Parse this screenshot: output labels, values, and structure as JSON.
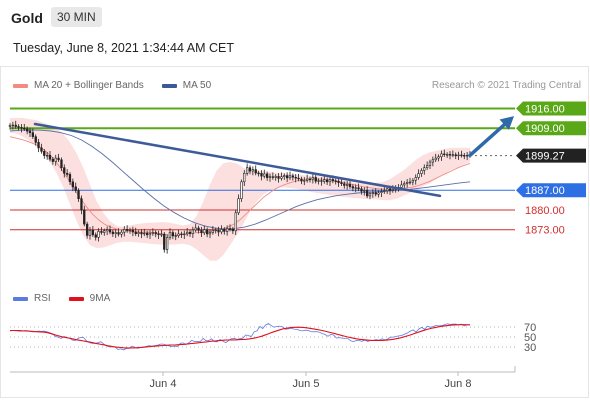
{
  "header": {
    "instrument": "Gold",
    "timeframe": "30 MIN"
  },
  "datetime": "Tuesday, June 8, 2021 1:34:44 AM CET",
  "legend": {
    "ma20": {
      "label": "MA 20 + Bollinger Bands",
      "color": "#f28b82"
    },
    "ma50": {
      "label": "MA 50",
      "color": "#3b5998"
    }
  },
  "credit": "Research © 2021 Trading Central",
  "rsi_legend": {
    "rsi": {
      "label": "RSI",
      "color": "#5b7be0"
    },
    "ma9": {
      "label": "9MA",
      "color": "#e0101c"
    }
  },
  "chart_data": [
    {
      "type": "candlestick",
      "ylim": [
        1858,
        1919
      ],
      "categories": [
        "Jun 4",
        "Jun 5",
        "Jun 8"
      ],
      "current_price": 1899.27,
      "levels": [
        {
          "value": 1916.0,
          "label": "1916.00",
          "color": "#5aa817",
          "kind": "resistance"
        },
        {
          "value": 1909.0,
          "label": "1909.00",
          "color": "#5aa817",
          "kind": "resistance"
        },
        {
          "value": 1899.27,
          "label": "1899.27",
          "color": "#222222",
          "kind": "price"
        },
        {
          "value": 1887.0,
          "label": "1887.00",
          "color": "#2f6fe4",
          "kind": "pivot"
        },
        {
          "value": 1880.0,
          "label": "1880.00",
          "color": "#d22f2f",
          "kind": "support"
        },
        {
          "value": 1873.0,
          "label": "1873.00",
          "color": "#d22f2f",
          "kind": "support"
        }
      ],
      "close_series": [
        1910.0,
        1910.1,
        1909.6,
        1909.3,
        1909.0,
        1908.8,
        1908.0,
        1907.4,
        1906.0,
        1904.0,
        1902.0,
        1900.8,
        1899.3,
        1899.4,
        1898.0,
        1897.2,
        1898.4,
        1897.8,
        1895.0,
        1893.0,
        1892.6,
        1890.0,
        1888.2,
        1886.9,
        1884.0,
        1880.0,
        1875.0,
        1871.0,
        1872.8,
        1871.2,
        1870.3,
        1872.4,
        1872.0,
        1872.6,
        1873.0,
        1872.2,
        1871.6,
        1872.0,
        1871.4,
        1872.1,
        1873.1,
        1872.7,
        1872.9,
        1872.2,
        1871.6,
        1872.0,
        1871.5,
        1871.8,
        1871.2,
        1871.6,
        1872.0,
        1871.5,
        1871.2,
        1871.4,
        1866.0,
        1870.2,
        1872.0,
        1870.8,
        1870.9,
        1871.5,
        1871.2,
        1871.5,
        1872.1,
        1871.6,
        1872.9,
        1873.6,
        1872.8,
        1871.9,
        1873.0,
        1871.5,
        1872.0,
        1872.8,
        1872.9,
        1872.2,
        1873.1,
        1872.4,
        1873.4,
        1873.2,
        1872.6,
        1879.0,
        1884.0,
        1890.0,
        1893.0,
        1895.0,
        1893.8,
        1894.3,
        1893.1,
        1893.0,
        1892.0,
        1892.8,
        1891.5,
        1891.8,
        1891.5,
        1891.9,
        1891.2,
        1891.8,
        1892.2,
        1891.4,
        1892.1,
        1891.6,
        1891.3,
        1891.0,
        1890.3,
        1890.5,
        1891.0,
        1890.9,
        1891.5,
        1890.2,
        1890.4,
        1890.1,
        1890.7,
        1890.0,
        1890.8,
        1890.3,
        1890.2,
        1889.7,
        1889.3,
        1888.7,
        1889.1,
        1888.3,
        1887.8,
        1887.9,
        1887.5,
        1886.6,
        1886.9,
        1885.0,
        1885.8,
        1886.2,
        1885.6,
        1886.1,
        1886.5,
        1886.8,
        1887.5,
        1886.9,
        1887.3,
        1888.0,
        1888.0,
        1888.9,
        1889.4,
        1889.8,
        1889.9,
        1890.5,
        1891.5,
        1892.9,
        1894.0,
        1895.0,
        1895.7,
        1897.0,
        1897.8,
        1898.4,
        1898.9,
        1899.9,
        1899.6,
        1899.7,
        1899.5,
        1899.6,
        1899.2,
        1899.5,
        1899.4,
        1899.2,
        1899.4,
        1899.27
      ],
      "ma20": [
        1906.0,
        1905.5,
        1905.0,
        1904.3,
        1903.5,
        1902.5,
        1901.0,
        1899.0,
        1896.5,
        1893.5,
        1890.5,
        1887.0,
        1884.0,
        1881.0,
        1878.5,
        1876.5,
        1875.0,
        1874.0,
        1873.3,
        1872.8,
        1872.5,
        1872.3,
        1872.2,
        1872.1,
        1872.0,
        1871.8,
        1871.5,
        1871.0,
        1871.0,
        1871.2,
        1871.5,
        1871.8,
        1872.0,
        1872.2,
        1872.4,
        1872.8,
        1873.3,
        1874.0,
        1875.0,
        1876.5,
        1878.5,
        1880.5,
        1882.5,
        1884.5,
        1886.0,
        1887.5,
        1888.5,
        1889.3,
        1890.0,
        1890.5,
        1890.8,
        1891.0,
        1891.0,
        1890.9,
        1890.7,
        1890.4,
        1890.0,
        1889.6,
        1889.1,
        1888.6,
        1888.2,
        1887.9,
        1887.6,
        1887.4,
        1887.3,
        1887.3,
        1887.4,
        1887.7,
        1888.0,
        1888.5,
        1889.2,
        1890.0,
        1891.0,
        1892.0,
        1893.0,
        1894.0,
        1895.0,
        1895.8,
        1896.5
      ],
      "bb_upper": [
        1912.5,
        1912.7,
        1912.6,
        1912.2,
        1911.8,
        1911.0,
        1910.0,
        1909.0,
        1907.0,
        1904.0,
        1900.0,
        1895.0,
        1889.0,
        1883.0,
        1879.0,
        1876.0,
        1874.3,
        1874.0,
        1874.5,
        1875.0,
        1875.3,
        1875.5,
        1875.6,
        1875.7,
        1875.5,
        1875.0,
        1874.5,
        1875.0,
        1878.0,
        1883.0,
        1889.0,
        1894.0,
        1896.5,
        1897.0,
        1896.5,
        1895.0,
        1894.3,
        1894.0,
        1893.8,
        1893.5,
        1893.2,
        1893.0,
        1892.7,
        1892.5,
        1892.3,
        1892.2,
        1892.0,
        1891.8,
        1891.5,
        1891.0,
        1890.5,
        1890.0,
        1889.5,
        1889.3,
        1889.3,
        1889.6,
        1890.0,
        1891.0,
        1892.5,
        1894.0,
        1896.0,
        1898.0,
        1899.5,
        1900.5,
        1901.0,
        1901.5,
        1902.0,
        1902.0,
        1902.0,
        1902.0
      ],
      "bb_lower": [
        1907.5,
        1907.0,
        1906.0,
        1904.5,
        1902.5,
        1900.0,
        1897.0,
        1893.0,
        1888.0,
        1882.0,
        1876.0,
        1871.0,
        1867.5,
        1866.5,
        1866.7,
        1867.5,
        1868.3,
        1868.7,
        1868.7,
        1868.5,
        1868.3,
        1868.0,
        1867.8,
        1867.7,
        1867.7,
        1867.8,
        1868.0,
        1867.5,
        1866.0,
        1864.0,
        1862.0,
        1862.0,
        1864.0,
        1867.5,
        1871.0,
        1875.0,
        1879.5,
        1883.0,
        1885.5,
        1887.0,
        1887.8,
        1888.0,
        1887.8,
        1887.5,
        1887.0,
        1886.5,
        1886.0,
        1885.7,
        1885.3,
        1885.0,
        1884.7,
        1884.4,
        1884.2,
        1884.0,
        1883.8,
        1883.7,
        1883.5,
        1883.5,
        1884.0,
        1885.0,
        1886.0,
        1887.0,
        1888.5,
        1889.5,
        1891.0,
        1892.5,
        1894.0,
        1895.0,
        1896.0,
        1897.0
      ],
      "ma50": [
        1908.0,
        1908.3,
        1908.4,
        1908.3,
        1908.0,
        1907.4,
        1906.4,
        1904.8,
        1902.6,
        1900.0,
        1897.0,
        1893.8,
        1890.6,
        1887.4,
        1884.4,
        1881.6,
        1879.2,
        1877.2,
        1875.6,
        1874.4,
        1873.6,
        1873.2,
        1873.4,
        1874.0,
        1875.0,
        1876.4,
        1878.0,
        1879.6,
        1881.2,
        1882.5,
        1883.6,
        1884.4,
        1885.1,
        1885.6,
        1886.0,
        1886.3,
        1886.5,
        1886.7,
        1887.0,
        1887.3,
        1887.7,
        1888.1,
        1888.6,
        1889.1,
        1889.6,
        1890.0
      ],
      "trendline": [
        [
          0,
          1910.5
        ],
        [
          1,
          1885.0
        ]
      ],
      "forecast_arrow": [
        [
          0,
          1899.4
        ],
        [
          1,
          1913.3
        ]
      ]
    },
    {
      "type": "line",
      "title": "RSI",
      "ylim": [
        0,
        100
      ],
      "ytick_labels": [
        "70",
        "50",
        "30"
      ],
      "series": [
        {
          "name": "RSI",
          "values": [
            62.5,
            62.9,
            63.0,
            61.9,
            61.7,
            62.4,
            62.7,
            61.1,
            60.3,
            60.2,
            62.0,
            61.2,
            61.6,
            60.5,
            58.5,
            56.5,
            51.1,
            49.5,
            47.3,
            50.7,
            49.1,
            47.6,
            43.8,
            43.1,
            47.2,
            49.2,
            48.6,
            41.9,
            38.5,
            37.3,
            37.3,
            38.9,
            40.6,
            35.8,
            32.4,
            30.4,
            30.6,
            29.7,
            25.2,
            26.3,
            24.2,
            27.2,
            27.1,
            31.6,
            29.1,
            27.5,
            29.4,
            30.0,
            31.1,
            32.7,
            31.7,
            32.9,
            33.9,
            35.9,
            35.7,
            34.0,
            32.3,
            31.0,
            31.9,
            31.3,
            37.5,
            38.3,
            35.4,
            38.4,
            43.4,
            40.7,
            41.3,
            40.9,
            47.1,
            42.7,
            42.8,
            46.4,
            40.8,
            40.4,
            45.0,
            41.6,
            38.8,
            42.8,
            46.7,
            47.4,
            45.1,
            46.6,
            47.6,
            54.3,
            52.6,
            51.2,
            60.4,
            62.1,
            71.2,
            66.7,
            74.0,
            77.0,
            72.7,
            69.6,
            71.0,
            71.8,
            70.2,
            65.6,
            66.1,
            67.7,
            65.9,
            65.4,
            63.3,
            62.1,
            63.6,
            63.3,
            60.8,
            60.4,
            60.8,
            59.6,
            56.7,
            55.0,
            51.4,
            55.4,
            53.9,
            47.9,
            48.8,
            47.9,
            47.0,
            46.9,
            42.5,
            40.7,
            43.2,
            42.7,
            41.4,
            43.9,
            41.1,
            43.2,
            43.5,
            44.9,
            43.8,
            46.4,
            44.1,
            46.0,
            49.6,
            49.8,
            51.1,
            52.2,
            53.3,
            55.9,
            58.2,
            61.9,
            64.1,
            59.6,
            66.0,
            69.1,
            65.5,
            71.6,
            69.4,
            70.9,
            73.1,
            72.2,
            72.6,
            74.6,
            76.4,
            75.3,
            75.8,
            76.0,
            73.7,
            75.7,
            72.3,
            74.8,
            74.1
          ]
        },
        {
          "name": "9MA",
          "values": [
            63.0,
            63.0,
            62.9,
            62.7,
            62.4,
            62.1,
            61.8,
            61.4,
            61.0,
            60.5,
            60.2,
            59.7,
            58.9,
            57.5,
            55.6,
            53.8,
            52.0,
            50.5,
            49.2,
            48.0,
            46.8,
            45.5,
            44.2,
            43.1,
            42.0,
            40.9,
            39.8,
            38.6,
            37.3,
            36.1,
            34.9,
            33.7,
            32.5,
            31.4,
            30.4,
            29.6,
            29.0,
            28.5,
            28.2,
            28.1,
            28.2,
            28.4,
            28.8,
            29.2,
            29.8,
            30.4,
            31.0,
            31.6,
            32.1,
            32.6,
            33.0,
            33.4,
            33.7,
            34.0,
            34.3,
            34.6,
            35.0,
            35.5,
            36.1,
            36.7,
            37.4,
            38.1,
            38.9,
            39.6,
            40.3,
            41.0,
            41.7,
            42.3,
            42.8,
            43.3,
            43.7,
            44.0,
            44.1,
            44.2,
            44.4,
            44.7,
            45.0,
            45.5,
            46.2,
            47.1,
            48.3,
            49.7,
            51.5,
            53.6,
            55.9,
            58.2,
            60.4,
            62.5,
            64.4,
            66.1,
            67.4,
            68.4,
            69.1,
            69.5,
            69.6,
            69.4,
            68.9,
            68.2,
            67.3,
            66.3,
            65.2,
            64.0,
            62.7,
            61.3,
            59.8,
            58.2,
            56.6,
            55.0,
            53.4,
            51.8,
            50.3,
            48.9,
            47.6,
            46.5,
            45.5,
            44.7,
            44.1,
            43.6,
            43.3,
            43.1,
            43.0,
            43.1,
            43.4,
            43.9,
            44.6,
            45.5,
            46.6,
            47.9,
            49.4,
            51.1,
            53.0,
            55.0,
            57.1,
            59.3,
            61.4,
            63.4,
            65.2,
            66.8,
            68.2,
            69.5,
            70.6,
            71.6,
            72.5,
            73.2,
            73.8,
            74.2,
            74.5,
            74.6,
            74.6,
            74.5,
            74.4
          ]
        }
      ]
    }
  ]
}
